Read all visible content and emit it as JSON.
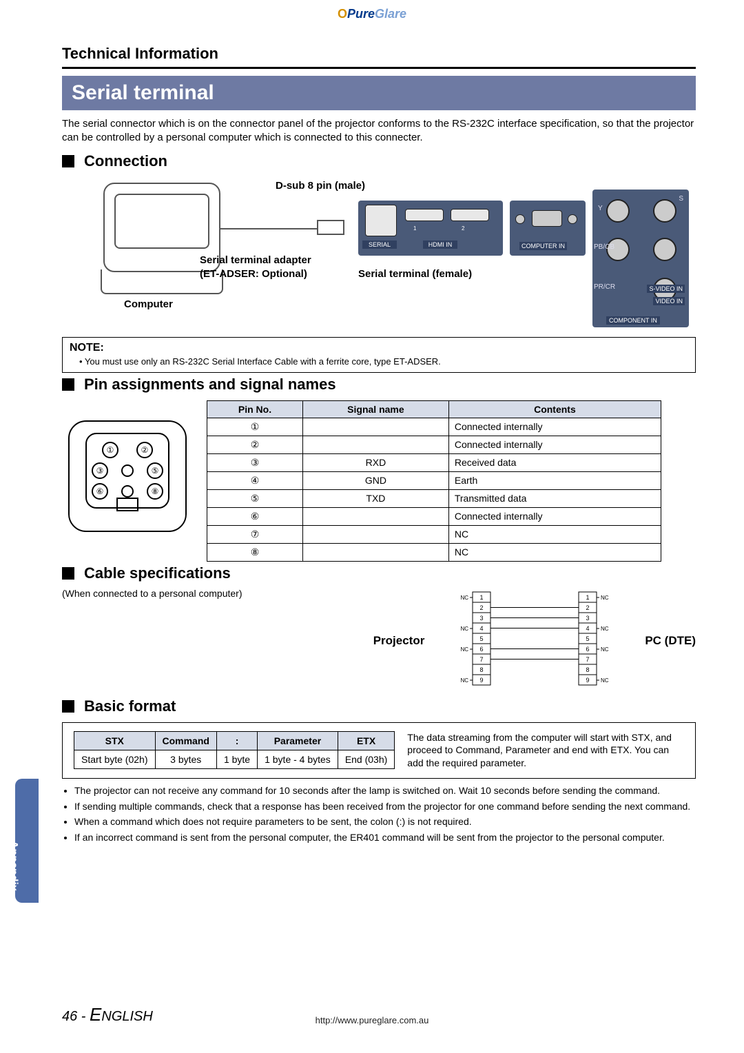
{
  "brand": {
    "o": "O",
    "pure": "Pure",
    "glare": "Glare"
  },
  "header": {
    "tech_info": "Technical Information"
  },
  "banner": {
    "serial_terminal": "Serial terminal"
  },
  "intro": "The serial connector which is on the connector panel of the projector conforms to the RS-232C interface specification, so that the projector can be controlled by a personal computer which is connected to this connecter.",
  "subheads": {
    "connection": "Connection",
    "pin": "Pin assignments and signal names",
    "cable": "Cable specifications",
    "basic": "Basic format"
  },
  "conn": {
    "dsub": "D-sub 8 pin (male)",
    "adapter1": "Serial terminal adapter",
    "adapter2": "(ET-ADSER: Optional)",
    "computer": "Computer",
    "serial_female": "Serial terminal (female)",
    "panel": {
      "serial": "SERIAL",
      "hdmi": "HDMI IN",
      "n1": "1",
      "n2": "2"
    },
    "computerin": "COMPUTER IN",
    "video": {
      "y": "Y",
      "s": "S",
      "pbcb": "PB/CB",
      "prcr": "PR/CR",
      "svideo": "S-VIDEO IN",
      "videoin": "VIDEO IN",
      "component": "COMPONENT IN"
    }
  },
  "note": {
    "title": "NOTE:",
    "text": "• You must use only an RS-232C Serial Interface Cable with a ferrite core, type ET-ADSER."
  },
  "pin_table": {
    "headers": {
      "pin": "Pin No.",
      "signal": "Signal name",
      "contents": "Contents"
    },
    "rows": [
      {
        "n": "1",
        "signal": "",
        "contents": "Connected internally"
      },
      {
        "n": "2",
        "signal": "",
        "contents": "Connected internally"
      },
      {
        "n": "3",
        "signal": "RXD",
        "contents": "Received data"
      },
      {
        "n": "4",
        "signal": "GND",
        "contents": "Earth"
      },
      {
        "n": "5",
        "signal": "TXD",
        "contents": "Transmitted data"
      },
      {
        "n": "6",
        "signal": "",
        "contents": "Connected internally"
      },
      {
        "n": "7",
        "signal": "",
        "contents": "NC"
      },
      {
        "n": "8",
        "signal": "",
        "contents": "NC"
      }
    ]
  },
  "cable": {
    "note": "(When connected to a personal computer)",
    "projector": "Projector",
    "pc": "PC (DTE)",
    "nc": "NC",
    "pins": [
      "1",
      "2",
      "3",
      "4",
      "5",
      "6",
      "7",
      "8",
      "9"
    ],
    "left_nc_rows": [
      0,
      3,
      5,
      8
    ],
    "right_nc_rows": [
      0,
      3,
      5,
      8
    ],
    "connections": [
      [
        2,
        2
      ],
      [
        3,
        3
      ],
      [
        4,
        4
      ],
      [
        6,
        6
      ],
      [
        7,
        7
      ]
    ]
  },
  "basic_format": {
    "headers": {
      "stx": "STX",
      "command": "Command",
      "colon": ":",
      "parameter": "Parameter",
      "etx": "ETX"
    },
    "row2": {
      "stx": "Start byte (02h)",
      "cmd": "3 bytes",
      "colon": "1 byte",
      "param": "1 byte - 4 bytes",
      "etx": "End (03h)"
    },
    "description": "The data streaming from the computer will start with STX, and proceed to Command, Parameter and end with ETX. You can add the required parameter.",
    "bullets": [
      "The projector can not receive any command for 10 seconds after the lamp is switched on. Wait 10 seconds before sending the command.",
      "If sending multiple commands, check that a response has been received from the projector for one command before sending the next command.",
      "When a command which does not require parameters to be sent, the colon (:) is not required.",
      "If an incorrect command is sent from the personal computer, the ER401 command will be sent from the projector to the personal computer."
    ]
  },
  "side_tab": "Appendix",
  "page_number": {
    "num": "46",
    "sep": " - ",
    "lang_e": "E",
    "lang_rest": "NGLISH"
  },
  "footer_url": "http://www.pureglare.com.au"
}
